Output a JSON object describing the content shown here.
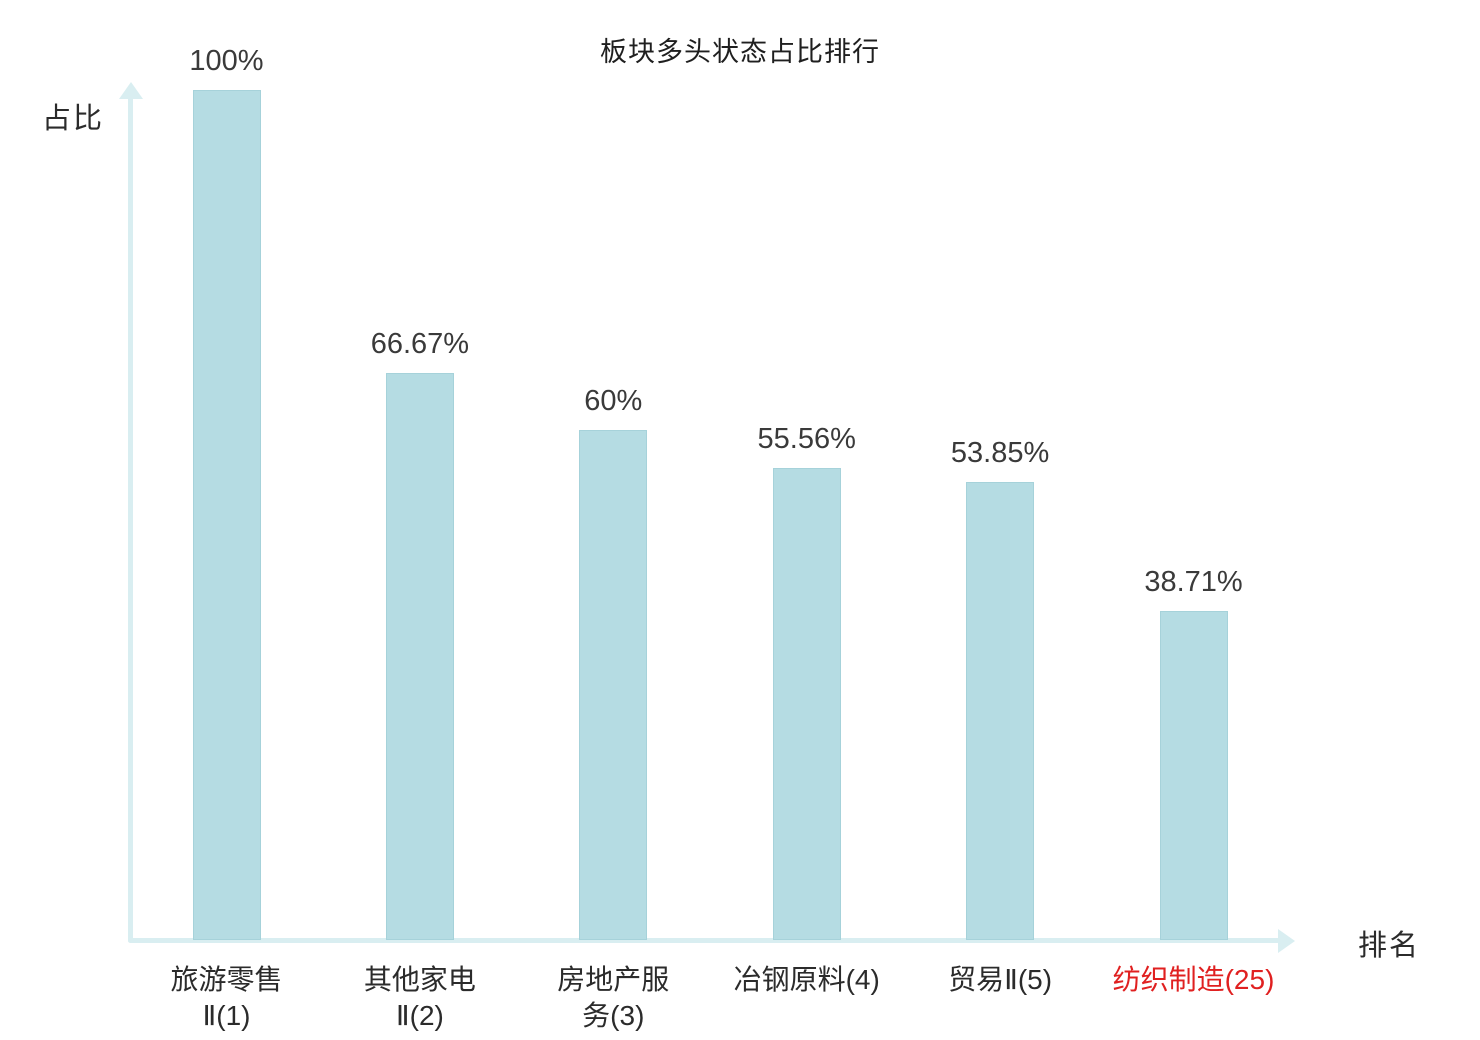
{
  "title": "板块多头状态占比排行",
  "axes": {
    "y_label": "占比",
    "x_label": "排名"
  },
  "chart_data": {
    "type": "bar",
    "title": "板块多头状态占比排行",
    "xlabel": "排名",
    "ylabel": "占比",
    "ylim": [
      0,
      100
    ],
    "grid": false,
    "legend": false,
    "categories": [
      "旅游零售Ⅱ(1)",
      "其他家电Ⅱ(2)",
      "房地产服务(3)",
      "冶钢原料(4)",
      "贸易Ⅱ(5)",
      "纺织制造(25)"
    ],
    "category_lines": [
      [
        "旅游零售",
        "Ⅱ(1)"
      ],
      [
        "其他家电",
        "Ⅱ(2)"
      ],
      [
        "房地产服",
        "务(3)"
      ],
      [
        "冶钢原料(4)"
      ],
      [
        "贸易Ⅱ(5)"
      ],
      [
        "纺织制造(25)"
      ]
    ],
    "values": [
      100,
      66.67,
      60,
      55.56,
      53.85,
      38.71
    ],
    "value_labels": [
      "100%",
      "66.67%",
      "60%",
      "55.56%",
      "53.85%",
      "38.71%"
    ],
    "highlight_index": 5,
    "colors": {
      "bar_fill": "#b5dce3",
      "bar_border": "#a6d2da",
      "axis": "#d9eef1",
      "label": "#3a3a3a",
      "highlight_label": "#e02020"
    }
  }
}
